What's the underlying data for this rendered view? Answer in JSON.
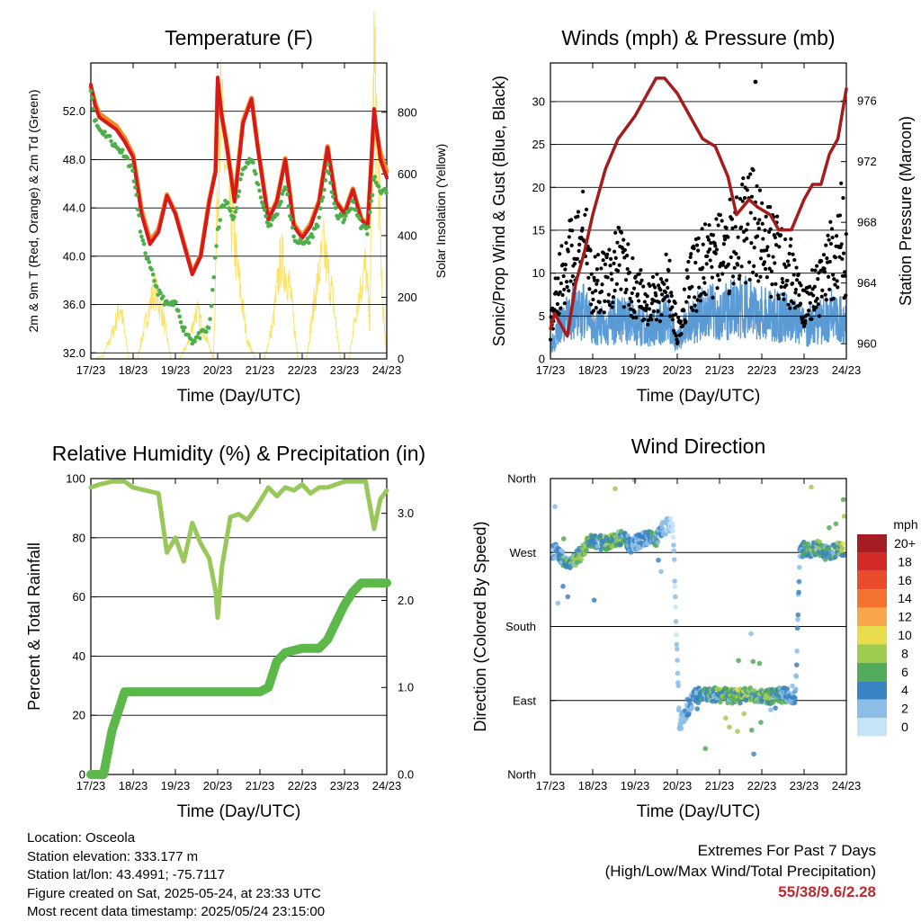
{
  "temperature": {
    "title": "Temperature (F)",
    "ylabel_left": "2m & 9m T (Red, Orange) & 2m Td (Green)",
    "ylabel_right": "Solar Insolation (Yellow)",
    "xlabel": "Time (Day/UTC)"
  },
  "winds": {
    "title": "Winds (mph) & Pressure (mb)",
    "ylabel_left": "Sonic/Prop Wind & Gust (Blue, Black)",
    "ylabel_right": "Station Pressure (Maroon)",
    "xlabel": "Time (Day/UTC)"
  },
  "humidity": {
    "title": "Relative Humidity (%) & Precipitation (in)",
    "ylabel_left": "Percent & Total Rainfall",
    "xlabel": "Time (Day/UTC)"
  },
  "direction": {
    "title": "Wind Direction",
    "ylabel_left": "Direction (Colored By Speed)",
    "xlabel": "Time (Day/UTC)",
    "legend_title": "mph"
  },
  "footer": {
    "location": "Location: Osceola",
    "elevation": "Station elevation: 333.177 m",
    "latlon": "Station lat/lon: 43.4991; -75.7117",
    "created": "Figure created on Sat, 2025-05-24, at 23:33 UTC",
    "recent": "Most recent data timestamp: 2025/05/24 23:15:00",
    "extremes_title": "Extremes For Past 7 Days",
    "extremes_sub": "(High/Low/Max Wind/Total Precipitation)",
    "extremes_values": "55/38/9.6/2.28"
  },
  "colors": {
    "temp_2m": "#d7191c",
    "temp_9m": "#f08a24",
    "dewpoint": "#4daf4a",
    "solar": "#fbe36b",
    "sonic_wind": "#5b9bd5",
    "gust": "#000000",
    "pressure": "#a51c1c",
    "rh": "#98c85a",
    "precip": "#5db84a",
    "ref_line": "#000000"
  },
  "chart_data": [
    {
      "id": "temperature",
      "type": "line",
      "title": "Temperature (F)",
      "xlabel": "Time (Day/UTC)",
      "ylabel": "2m & 9m T (Red, Orange) & 2m Td (Green)",
      "ylabel_right": "Solar Insolation (Yellow)",
      "x_ticks": [
        "17/23",
        "18/23",
        "19/23",
        "20/23",
        "21/23",
        "22/23",
        "23/23",
        "24/23"
      ],
      "xlim": [
        0,
        7
      ],
      "ylim": [
        31.5,
        56.0
      ],
      "y_ticks": [
        "32.0",
        "36.0",
        "40.0",
        "44.0",
        "48.0",
        "52.0"
      ],
      "ylim_right": [
        0,
        960
      ],
      "y_ticks_right": [
        "0",
        "200",
        "400",
        "600",
        "800"
      ],
      "series": [
        {
          "name": "2m T",
          "axis": "left",
          "x": [
            0.0,
            0.1,
            0.2,
            0.4,
            0.6,
            0.8,
            1.0,
            1.2,
            1.4,
            1.6,
            1.8,
            2.0,
            2.2,
            2.4,
            2.6,
            2.8,
            2.95,
            3.0,
            3.1,
            3.2,
            3.4,
            3.6,
            3.8,
            3.95,
            4.2,
            4.4,
            4.6,
            4.8,
            5.0,
            5.2,
            5.4,
            5.6,
            5.8,
            6.0,
            6.2,
            6.4,
            6.55,
            6.7,
            6.85,
            7.0
          ],
          "values": [
            54.2,
            52.5,
            51.5,
            51.0,
            50.5,
            49.5,
            48.2,
            43.5,
            41.0,
            42.0,
            45.0,
            43.5,
            41.0,
            38.5,
            40.0,
            44.5,
            47.0,
            54.8,
            51.5,
            49.5,
            44.5,
            51.0,
            53.0,
            49.0,
            43.0,
            44.5,
            48.0,
            42.5,
            41.5,
            42.5,
            44.5,
            49.0,
            44.5,
            43.5,
            45.5,
            43.0,
            42.5,
            52.2,
            48.0,
            46.5
          ]
        },
        {
          "name": "9m T",
          "axis": "left",
          "x": [
            0.0,
            0.1,
            0.2,
            0.4,
            0.6,
            0.8,
            1.0,
            1.2,
            1.4,
            1.6,
            1.8,
            2.0,
            2.2,
            2.4,
            2.6,
            2.8,
            2.95,
            3.0,
            3.1,
            3.2,
            3.4,
            3.6,
            3.8,
            3.95,
            4.2,
            4.4,
            4.6,
            4.8,
            5.0,
            5.2,
            5.4,
            5.6,
            5.8,
            6.0,
            6.2,
            6.4,
            6.55,
            6.7,
            6.85,
            7.0
          ],
          "values": [
            54.0,
            52.7,
            51.8,
            51.3,
            50.8,
            49.8,
            48.4,
            43.8,
            41.3,
            42.2,
            45.1,
            43.6,
            41.1,
            38.6,
            40.1,
            44.6,
            47.1,
            54.0,
            51.6,
            49.6,
            44.7,
            51.2,
            53.1,
            49.1,
            43.1,
            44.6,
            48.1,
            42.7,
            41.7,
            42.7,
            44.6,
            49.1,
            44.6,
            43.6,
            45.6,
            43.1,
            42.7,
            51.5,
            48.6,
            47.0
          ]
        },
        {
          "name": "2m Td",
          "axis": "left",
          "x": [
            0.0,
            0.1,
            0.2,
            0.4,
            0.6,
            0.8,
            1.0,
            1.2,
            1.4,
            1.6,
            1.8,
            2.0,
            2.2,
            2.4,
            2.6,
            2.8,
            3.0,
            3.1,
            3.2,
            3.4,
            3.6,
            3.8,
            3.95,
            4.2,
            4.4,
            4.6,
            4.8,
            5.0,
            5.2,
            5.4,
            5.6,
            5.8,
            6.0,
            6.2,
            6.4,
            6.55,
            6.7,
            6.85,
            7.0
          ],
          "values": [
            54.0,
            51.2,
            50.5,
            50.0,
            49.0,
            48.5,
            47.0,
            41.5,
            39.0,
            37.0,
            36.0,
            36.0,
            34.0,
            33.0,
            33.5,
            34.0,
            42.0,
            44.0,
            44.5,
            43.0,
            47.5,
            48.0,
            46.0,
            42.5,
            43.5,
            46.0,
            41.5,
            41.0,
            41.5,
            43.0,
            47.5,
            43.5,
            43.0,
            44.5,
            42.5,
            42.0,
            46.5,
            45.5,
            45.2
          ]
        },
        {
          "name": "Solar Insolation",
          "axis": "right",
          "x": [
            0.0,
            0.1,
            0.3,
            0.5,
            0.7,
            0.9,
            1.1,
            1.3,
            1.5,
            1.7,
            1.9,
            2.1,
            2.3,
            2.5,
            2.7,
            2.9,
            3.05,
            3.3,
            3.5,
            3.7,
            3.9,
            4.1,
            4.3,
            4.5,
            4.7,
            4.9,
            5.1,
            5.3,
            5.5,
            5.7,
            5.9,
            6.1,
            6.3,
            6.5,
            6.6,
            6.7,
            6.8,
            6.9,
            7.0
          ],
          "values": [
            0,
            0,
            10,
            80,
            170,
            0,
            0,
            120,
            230,
            140,
            0,
            0,
            50,
            160,
            80,
            0,
            800,
            480,
            260,
            60,
            0,
            0,
            110,
            330,
            240,
            0,
            0,
            200,
            360,
            220,
            0,
            0,
            180,
            300,
            120,
            950,
            620,
            180,
            0
          ]
        }
      ]
    },
    {
      "id": "winds",
      "type": "line",
      "title": "Winds (mph) & Pressure (mb)",
      "xlabel": "Time (Day/UTC)",
      "ylabel": "Sonic/Prop Wind & Gust (Blue, Black)",
      "ylabel_right": "Station Pressure (Maroon)",
      "x_ticks": [
        "17/23",
        "18/23",
        "19/23",
        "20/23",
        "21/23",
        "22/23",
        "23/23",
        "24/23"
      ],
      "xlim": [
        0,
        7
      ],
      "ylim": [
        0,
        30
      ],
      "y_ticks": [
        "0",
        "5",
        "10",
        "15",
        "20",
        "25",
        "30"
      ],
      "ylim_right": [
        959,
        978
      ],
      "y_ticks_right": [
        "960",
        "964",
        "968",
        "972",
        "976"
      ],
      "series": [
        {
          "name": "Sonic Wind",
          "axis": "left",
          "x": [
            0.0,
            0.2,
            0.5,
            0.8,
            1.0,
            1.3,
            1.6,
            2.0,
            2.4,
            2.8,
            3.0,
            3.3,
            3.6,
            4.0,
            4.4,
            4.8,
            5.2,
            5.6,
            6.0,
            6.4,
            6.7,
            7.0
          ],
          "values": [
            2.0,
            4.5,
            6.5,
            7.0,
            4.5,
            5.0,
            6.0,
            5.0,
            4.5,
            6.0,
            2.5,
            5.5,
            6.5,
            7.0,
            7.5,
            7.5,
            6.5,
            6.0,
            4.5,
            5.5,
            6.5,
            5.0
          ]
        },
        {
          "name": "Gust",
          "axis": "left",
          "x": [
            0.0,
            0.2,
            0.5,
            0.8,
            1.0,
            1.3,
            1.6,
            2.0,
            2.4,
            2.8,
            3.0,
            3.3,
            3.6,
            4.0,
            4.4,
            4.8,
            5.2,
            5.6,
            6.0,
            6.4,
            6.7,
            6.85,
            7.0
          ],
          "values": [
            5.0,
            11.0,
            15.0,
            18.0,
            10.0,
            12.0,
            14.0,
            10.0,
            8.5,
            11.0,
            4.0,
            11.0,
            13.5,
            15.0,
            18.0,
            20.0,
            16.0,
            13.5,
            7.5,
            11.0,
            15.5,
            20.0,
            13.0
          ]
        },
        {
          "name": "Station Pressure",
          "axis": "right",
          "x": [
            0.0,
            0.1,
            0.2,
            0.4,
            0.6,
            0.8,
            1.0,
            1.3,
            1.6,
            2.0,
            2.3,
            2.5,
            2.7,
            3.0,
            3.3,
            3.6,
            3.9,
            4.2,
            4.4,
            4.7,
            4.9,
            5.2,
            5.4,
            5.7,
            6.0,
            6.2,
            6.4,
            6.6,
            6.8,
            7.0
          ],
          "values": [
            961.0,
            962.0,
            961.5,
            960.5,
            964.0,
            966.0,
            968.5,
            971.5,
            973.5,
            975.0,
            976.5,
            977.5,
            977.5,
            976.5,
            975.0,
            973.5,
            973.0,
            971.0,
            968.5,
            969.5,
            969.0,
            968.5,
            967.5,
            967.5,
            969.5,
            970.5,
            970.5,
            972.5,
            973.5,
            976.8
          ]
        }
      ],
      "scatter": [
        {
          "name": "Gust max",
          "x": [
            4.85
          ],
          "values": [
            32.3
          ]
        }
      ]
    },
    {
      "id": "humidity",
      "type": "line",
      "title": "Relative Humidity (%) & Precipitation (in)",
      "xlabel": "Time (Day/UTC)",
      "ylabel": "Percent & Total Rainfall",
      "x_ticks": [
        "17/23",
        "18/23",
        "19/23",
        "20/23",
        "21/23",
        "22/23",
        "23/23",
        "24/23"
      ],
      "xlim": [
        0,
        7
      ],
      "ylim": [
        0,
        100
      ],
      "y_ticks": [
        "0",
        "20",
        "40",
        "60",
        "80",
        "100"
      ],
      "ylim_right": [
        0,
        3.4
      ],
      "y_ticks_right": [
        "0.0",
        "1.0",
        "2.0",
        "3.0"
      ],
      "series": [
        {
          "name": "Relative Humidity",
          "axis": "left",
          "x": [
            0.0,
            0.2,
            0.5,
            0.8,
            1.0,
            1.3,
            1.6,
            1.8,
            2.0,
            2.2,
            2.4,
            2.6,
            2.8,
            2.95,
            3.0,
            3.1,
            3.3,
            3.5,
            3.7,
            3.9,
            4.2,
            4.4,
            4.6,
            4.8,
            5.0,
            5.2,
            5.4,
            5.6,
            5.8,
            6.0,
            6.2,
            6.5,
            6.7,
            6.85,
            7.0
          ],
          "values": [
            97,
            98,
            99,
            99,
            97,
            96,
            95,
            75,
            80,
            72,
            85,
            78,
            73,
            62,
            53,
            70,
            87,
            88,
            86,
            90,
            97,
            94,
            97,
            96,
            98,
            95,
            97,
            97,
            98,
            99,
            99,
            99,
            83,
            93,
            96
          ]
        },
        {
          "name": "Total Rainfall",
          "axis": "right",
          "x": [
            0.0,
            0.3,
            0.5,
            0.8,
            1.0,
            1.5,
            2.0,
            2.5,
            3.0,
            3.5,
            4.0,
            4.2,
            4.4,
            4.6,
            5.0,
            5.4,
            5.6,
            5.8,
            6.0,
            6.2,
            6.4,
            6.6,
            7.0
          ],
          "values": [
            0.0,
            0.0,
            0.5,
            0.95,
            0.95,
            0.95,
            0.95,
            0.95,
            0.95,
            0.95,
            0.95,
            1.0,
            1.3,
            1.4,
            1.45,
            1.45,
            1.55,
            1.75,
            1.95,
            2.1,
            2.2,
            2.2,
            2.2
          ]
        }
      ]
    },
    {
      "id": "direction",
      "type": "scatter",
      "title": "Wind Direction",
      "xlabel": "Time (Day/UTC)",
      "ylabel": "Direction (Colored By Speed)",
      "x_ticks": [
        "17/23",
        "18/23",
        "19/23",
        "20/23",
        "21/23",
        "22/23",
        "23/23",
        "24/23"
      ],
      "xlim": [
        0,
        7
      ],
      "y_ticks": [
        "North",
        "West",
        "South",
        "East",
        "North"
      ],
      "ylim": [
        0,
        360
      ],
      "series": [
        {
          "name": "Direction",
          "x": [
            0.1,
            0.2,
            0.3,
            0.5,
            0.7,
            0.9,
            1.1,
            1.3,
            1.5,
            1.7,
            1.9,
            2.1,
            2.3,
            2.5,
            2.7,
            2.9,
            3.05,
            3.2,
            3.4,
            3.6,
            3.8,
            4.0,
            4.2,
            4.4,
            4.6,
            4.8,
            5.0,
            5.2,
            5.4,
            5.6,
            5.8,
            5.9,
            6.0,
            6.1,
            6.3,
            6.5,
            6.7,
            6.9
          ],
          "values": [
            272,
            270,
            262,
            258,
            268,
            282,
            283,
            281,
            285,
            288,
            279,
            284,
            288,
            286,
            301,
            305,
            60,
            75,
            95,
            97,
            98,
            97,
            96,
            95,
            97,
            97,
            96,
            95,
            97,
            96,
            95,
            272,
            275,
            272,
            276,
            270,
            272,
            275
          ],
          "speeds": [
            3,
            4,
            5,
            6,
            8,
            6,
            5,
            6,
            7,
            5,
            4,
            3,
            4,
            5,
            2,
            1,
            2,
            3,
            4,
            5,
            6,
            7,
            6,
            7,
            8,
            6,
            7,
            6,
            5,
            4,
            3,
            4,
            5,
            6,
            7,
            5,
            6,
            8
          ]
        }
      ],
      "legend": {
        "title": "mph",
        "labels": [
          "20+",
          "18",
          "16",
          "14",
          "12",
          "10",
          "8",
          "6",
          "4",
          "2",
          "0"
        ],
        "colors": [
          "#a61c22",
          "#d42a27",
          "#e84c2b",
          "#f3722d",
          "#f9a54b",
          "#e8dc4d",
          "#a0cc4e",
          "#52ab5b",
          "#3b84c4",
          "#8bbde6",
          "#c5e4f7"
        ]
      }
    }
  ]
}
